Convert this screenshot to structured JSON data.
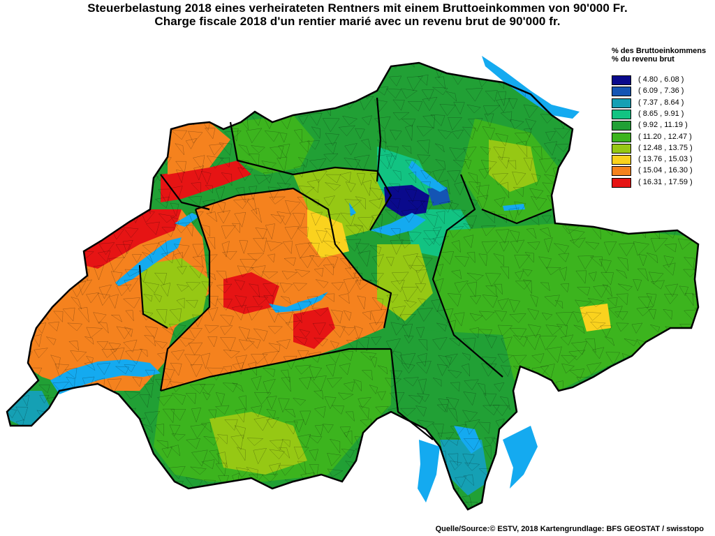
{
  "title": {
    "line1": "Steuerbelastung 2018 eines verheirateten Rentners mit einem Bruttoeinkommen von 90'000 Fr.",
    "line2": "Charge fiscale 2018 d'un rentier marié avec un revenu brut de 90'000 fr."
  },
  "legend": {
    "heading1": "% des Bruttoeinkommens",
    "heading2": "% du revenu brut",
    "classes": [
      {
        "label": "( 4.80 , 6.08 )",
        "color": "#0a0a8c"
      },
      {
        "label": "( 6.09 , 7.36 )",
        "color": "#1455b4"
      },
      {
        "label": "( 7.37 , 8.64 )",
        "color": "#15a0b4"
      },
      {
        "label": "( 8.65 , 9.91 )",
        "color": "#12c382"
      },
      {
        "label": "( 9.92 , 11.19 )",
        "color": "#21a035"
      },
      {
        "label": "( 11.20 , 12.47 )",
        "color": "#3cb41e"
      },
      {
        "label": "( 12.48 , 13.75 )",
        "color": "#96c814"
      },
      {
        "label": "( 13.76 , 15.03 )",
        "color": "#fad21e"
      },
      {
        "label": "( 15.04 , 16.30 )",
        "color": "#f5821e"
      },
      {
        "label": "( 16.31 , 17.59 )",
        "color": "#e61414"
      }
    ]
  },
  "map": {
    "lake_color": "#14aaf0",
    "border_color": "#000000"
  },
  "source": "Quelle/Source:© ESTV, 2018 Kartengrundlage: BFS GEOSTAT / swisstopo"
}
